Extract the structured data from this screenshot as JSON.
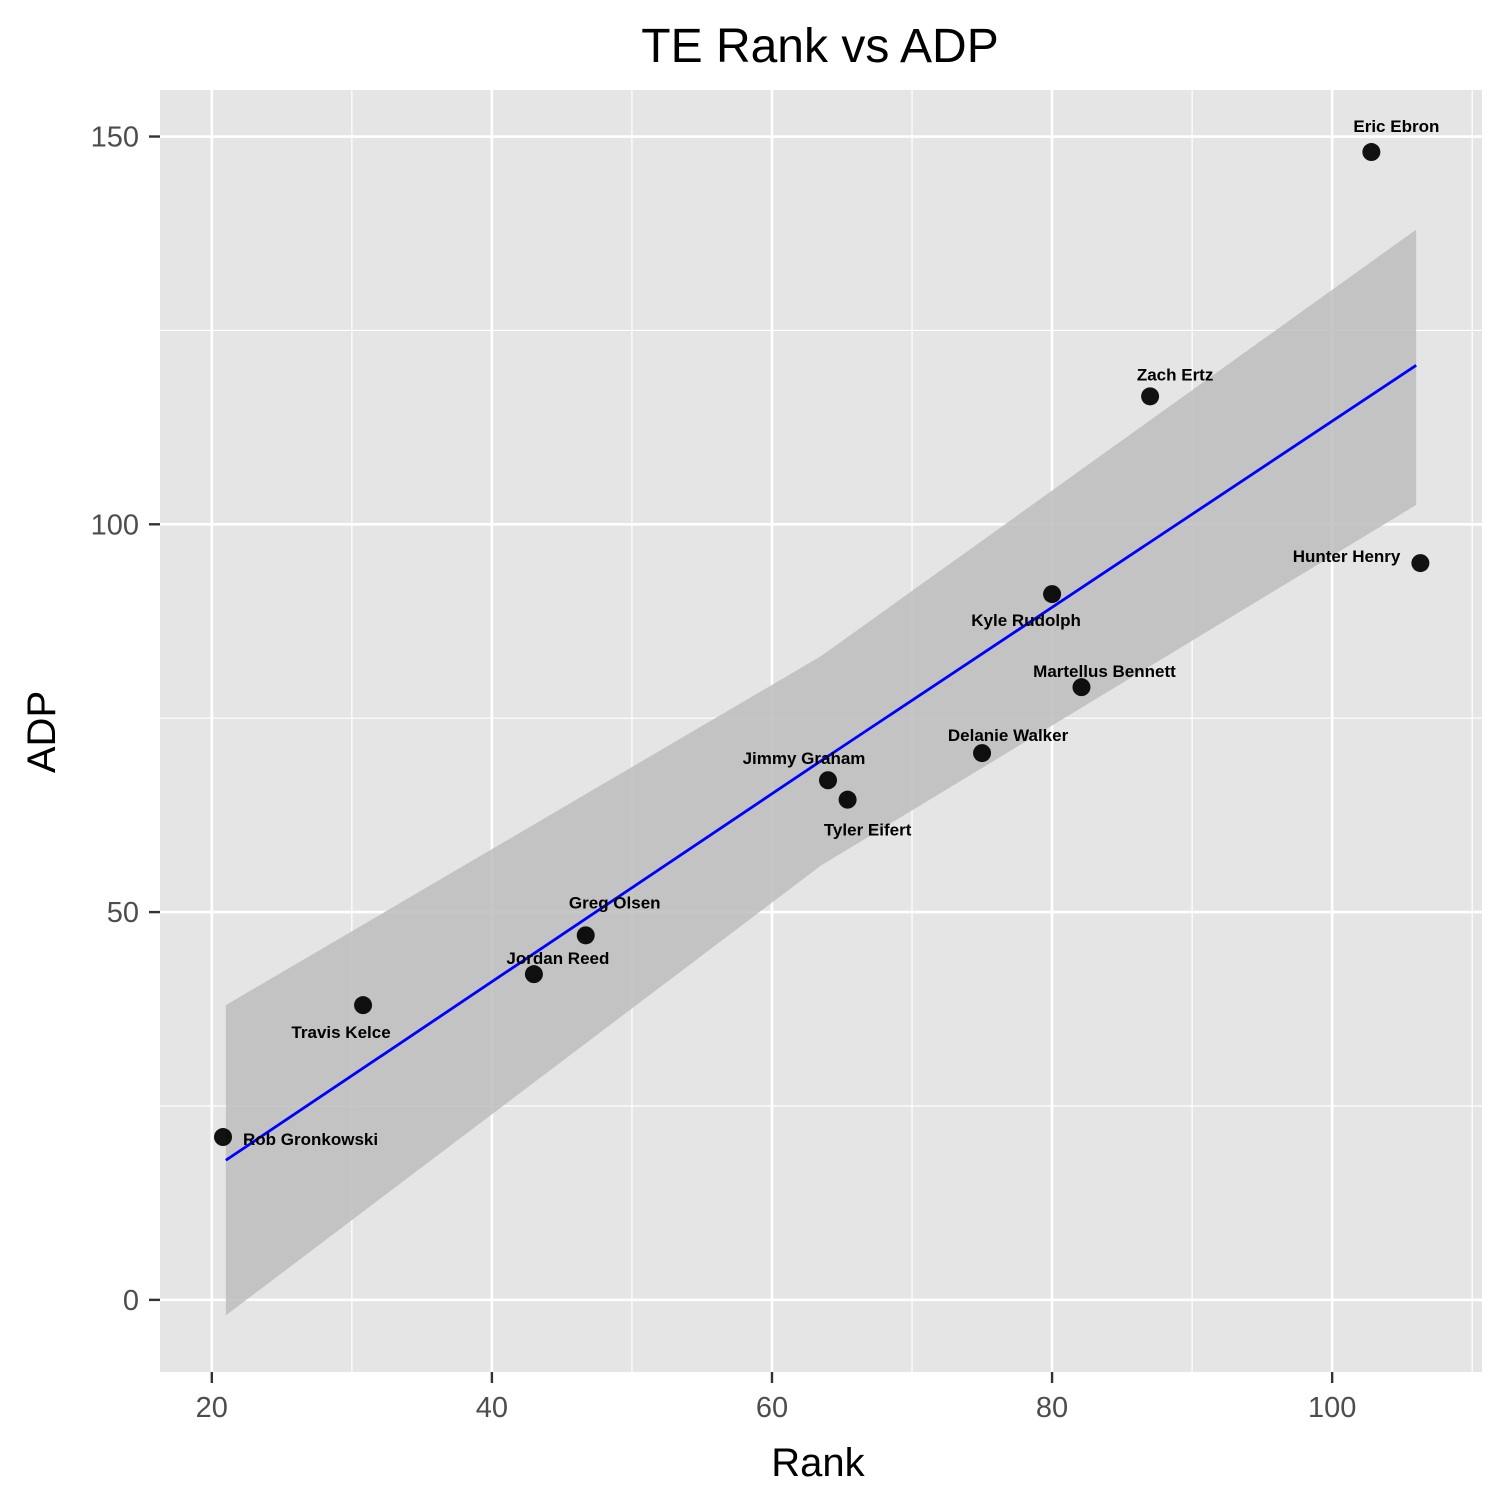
{
  "chart_data": {
    "type": "scatter",
    "title": "TE Rank vs ADP",
    "xlabel": "Rank",
    "ylabel": "ADP",
    "xlim": [
      16.3,
      110.7
    ],
    "ylim": [
      -9.3,
      156
    ],
    "x_ticks": [
      20,
      40,
      60,
      80,
      100
    ],
    "y_ticks": [
      0,
      50,
      100,
      150
    ],
    "grid": true,
    "colors": {
      "panel": "#e5e5e5",
      "grid": "#ffffff",
      "points": "#000000",
      "fit_line": "#0000ff",
      "ribbon": "#bdbdbd"
    },
    "points": [
      {
        "name": "Rob Gronkowski",
        "x": 20.8,
        "y": 21.0
      },
      {
        "name": "Travis Kelce",
        "x": 30.8,
        "y": 38.0
      },
      {
        "name": "Jordan Reed",
        "x": 43.0,
        "y": 42.0
      },
      {
        "name": "Greg Olsen",
        "x": 46.7,
        "y": 47.0
      },
      {
        "name": "Jimmy Graham",
        "x": 64.0,
        "y": 67.0
      },
      {
        "name": "Tyler Eifert",
        "x": 65.4,
        "y": 64.5
      },
      {
        "name": "Delanie Walker",
        "x": 75.0,
        "y": 70.5
      },
      {
        "name": "Kyle Rudolph",
        "x": 80.0,
        "y": 91.0
      },
      {
        "name": "Martellus Bennett",
        "x": 82.1,
        "y": 79.0
      },
      {
        "name": "Zach Ertz",
        "x": 87.0,
        "y": 116.5
      },
      {
        "name": "Eric Ebron",
        "x": 102.8,
        "y": 148.0
      },
      {
        "name": "Hunter Henry",
        "x": 106.3,
        "y": 95.0
      }
    ],
    "fit": {
      "method": "lm",
      "x": [
        21,
        63.5,
        106
      ],
      "y": [
        18,
        69.5,
        120.5
      ],
      "lower": [
        -2,
        56,
        102.5
      ],
      "upper": [
        38,
        83,
        138
      ]
    }
  }
}
